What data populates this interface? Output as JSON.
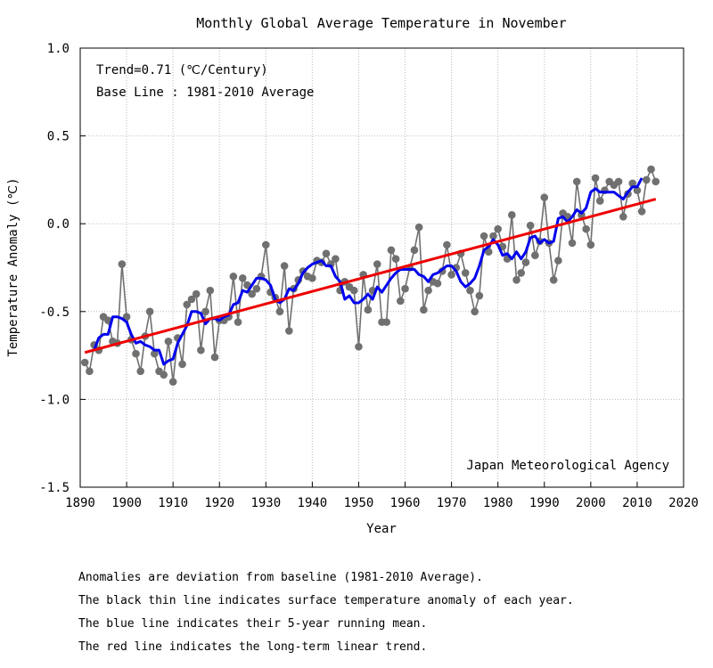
{
  "chart_data": {
    "type": "line",
    "title": "Monthly Global Average Temperature in November",
    "xlabel": "Year",
    "ylabel": "Temperature Anomaly (℃)",
    "xlim": [
      1890,
      2020
    ],
    "ylim": [
      -1.5,
      1.0
    ],
    "xticks": [
      1890,
      1900,
      1910,
      1920,
      1930,
      1940,
      1950,
      1960,
      1970,
      1980,
      1990,
      2000,
      2010,
      2020
    ],
    "yticks": [
      -1.5,
      -1.0,
      -0.5,
      0.0,
      0.5,
      1.0
    ],
    "ytick_labels": [
      "-1.5",
      "-1.0",
      "-0.5",
      "0.0",
      "0.5",
      "1.0"
    ],
    "grid": true,
    "annotations": {
      "trend": "Trend=0.71 (℃/Century)",
      "baseline": "Base Line : 1981-2010 Average",
      "source": "Japan Meteorological Agency"
    },
    "colors": {
      "anomaly": "#707070",
      "running_mean": "#0000ee",
      "trend": "#ee0000",
      "grid": "#bbbbbb"
    },
    "x": [
      1891,
      1892,
      1893,
      1894,
      1895,
      1896,
      1897,
      1898,
      1899,
      1900,
      1901,
      1902,
      1903,
      1904,
      1905,
      1906,
      1907,
      1908,
      1909,
      1910,
      1911,
      1912,
      1913,
      1914,
      1915,
      1916,
      1917,
      1918,
      1919,
      1920,
      1921,
      1922,
      1923,
      1924,
      1925,
      1926,
      1927,
      1928,
      1929,
      1930,
      1931,
      1932,
      1933,
      1934,
      1935,
      1936,
      1937,
      1938,
      1939,
      1940,
      1941,
      1942,
      1943,
      1944,
      1945,
      1946,
      1947,
      1948,
      1949,
      1950,
      1951,
      1952,
      1953,
      1954,
      1955,
      1956,
      1957,
      1958,
      1959,
      1960,
      1961,
      1962,
      1963,
      1964,
      1965,
      1966,
      1967,
      1968,
      1969,
      1970,
      1971,
      1972,
      1973,
      1974,
      1975,
      1976,
      1977,
      1978,
      1979,
      1980,
      1981,
      1982,
      1983,
      1984,
      1985,
      1986,
      1987,
      1988,
      1989,
      1990,
      1991,
      1992,
      1993,
      1994,
      1995,
      1996,
      1997,
      1998,
      1999,
      2000,
      2001,
      2002,
      2003,
      2004,
      2005,
      2006,
      2007,
      2008,
      2009,
      2010,
      2011,
      2012,
      2013,
      2014
    ],
    "series": [
      {
        "values": [
          -0.79,
          -0.84,
          -0.69,
          -0.72,
          -0.53,
          -0.55,
          -0.67,
          -0.68,
          -0.23,
          -0.53,
          -0.66,
          -0.74,
          -0.84,
          -0.64,
          -0.5,
          -0.74,
          -0.84,
          -0.86,
          -0.67,
          -0.9,
          -0.65,
          -0.8,
          -0.46,
          -0.43,
          -0.4,
          -0.72,
          -0.5,
          -0.38,
          -0.76,
          -0.55,
          -0.55,
          -0.53,
          -0.3,
          -0.56,
          -0.31,
          -0.35,
          -0.4,
          -0.37,
          -0.3,
          -0.12,
          -0.39,
          -0.42,
          -0.5,
          -0.24,
          -0.61,
          -0.37,
          -0.32,
          -0.27,
          -0.3,
          -0.31,
          -0.21,
          -0.22,
          -0.17,
          -0.23,
          -0.2,
          -0.38,
          -0.33,
          -0.36,
          -0.38,
          -0.7,
          -0.29,
          -0.49,
          -0.38,
          -0.23,
          -0.56,
          -0.56,
          -0.15,
          -0.2,
          -0.44,
          -0.37,
          -0.25,
          -0.15,
          -0.02,
          -0.49,
          -0.38,
          -0.33,
          -0.34,
          -0.27,
          -0.12,
          -0.29,
          -0.25,
          -0.17,
          -0.28,
          -0.38,
          -0.5,
          -0.41,
          -0.07,
          -0.16,
          -0.07,
          -0.03,
          -0.13,
          -0.2,
          0.05,
          -0.32,
          -0.28,
          -0.22,
          -0.01,
          -0.18,
          -0.1,
          0.15,
          -0.11,
          -0.32,
          -0.21,
          0.06,
          0.04,
          -0.11,
          0.24,
          0.05,
          -0.03,
          -0.12,
          0.26,
          0.13,
          0.19,
          0.24,
          0.22,
          0.24,
          0.04,
          0.17,
          0.23,
          0.19,
          0.07,
          0.25,
          0.31,
          0.24
        ]
      },
      {
        "values": [
          null,
          null,
          -0.72,
          -0.65,
          -0.63,
          -0.63,
          -0.53,
          -0.53,
          -0.54,
          -0.56,
          -0.63,
          -0.68,
          -0.67,
          -0.69,
          -0.7,
          -0.72,
          -0.72,
          -0.8,
          -0.78,
          -0.77,
          -0.68,
          -0.63,
          -0.58,
          -0.5,
          -0.5,
          -0.51,
          -0.57,
          -0.54,
          -0.54,
          -0.55,
          -0.53,
          -0.52,
          -0.46,
          -0.45,
          -0.38,
          -0.39,
          -0.35,
          -0.31,
          -0.31,
          -0.32,
          -0.35,
          -0.43,
          -0.45,
          -0.43,
          -0.37,
          -0.38,
          -0.34,
          -0.28,
          -0.25,
          -0.23,
          -0.22,
          -0.21,
          -0.24,
          -0.24,
          -0.3,
          -0.33,
          -0.43,
          -0.41,
          -0.45,
          -0.45,
          -0.43,
          -0.4,
          -0.43,
          -0.36,
          -0.39,
          -0.35,
          -0.31,
          -0.28,
          -0.26,
          -0.26,
          -0.26,
          -0.26,
          -0.29,
          -0.3,
          -0.33,
          -0.29,
          -0.28,
          -0.26,
          -0.24,
          -0.24,
          -0.27,
          -0.33,
          -0.36,
          -0.34,
          -0.31,
          -0.24,
          -0.15,
          -0.13,
          -0.09,
          -0.12,
          -0.18,
          -0.17,
          -0.2,
          -0.16,
          -0.2,
          -0.16,
          -0.08,
          -0.07,
          -0.11,
          -0.09,
          -0.11,
          -0.1,
          0.03,
          0.04,
          0.01,
          0.04,
          0.08,
          0.06,
          0.09,
          0.18,
          0.2,
          0.18,
          0.18,
          0.18,
          0.18,
          0.16,
          0.14,
          0.18,
          0.21,
          0.21,
          0.26,
          null,
          null,
          null
        ]
      }
    ],
    "trend_line": {
      "x": [
        1891,
        2014
      ],
      "y": [
        -0.733,
        0.14
      ]
    }
  },
  "notes": [
    "Anomalies are deviation from baseline (1981-2010 Average).",
    "The black thin line indicates surface temperature anomaly of each year.",
    "The blue line indicates their 5-year running mean.",
    "The red line indicates the long-term linear trend."
  ]
}
